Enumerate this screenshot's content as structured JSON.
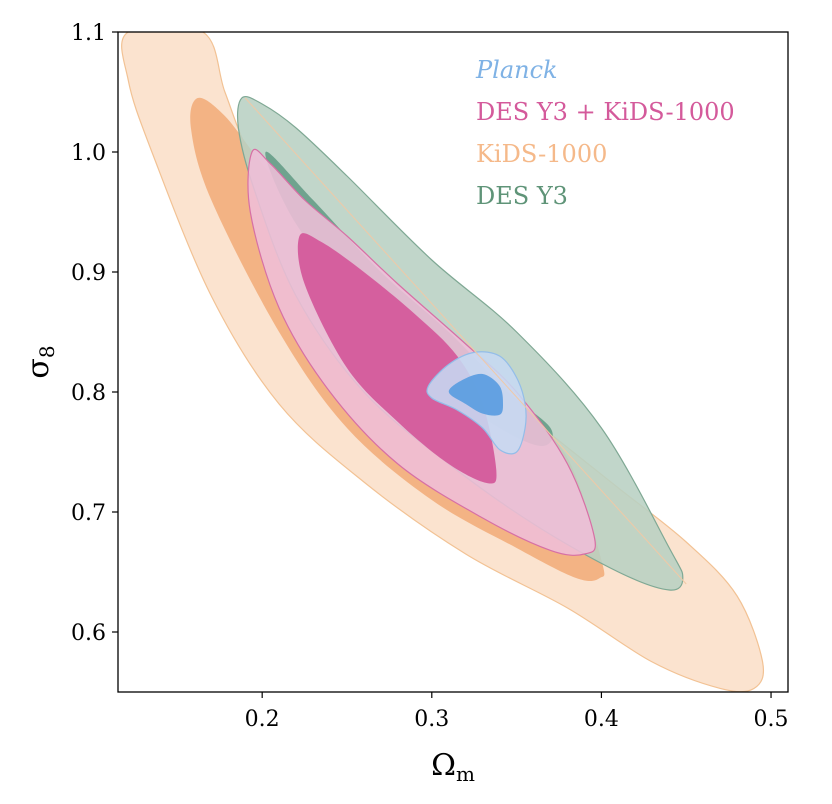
{
  "chart_data": {
    "type": "contour",
    "xlabel": "Ωm",
    "xlabel_main": "Ω",
    "xlabel_sub": "m",
    "ylabel": "σ8",
    "ylabel_main": "σ",
    "ylabel_sub": "8",
    "xlim": [
      0.115,
      0.51
    ],
    "ylim": [
      0.55,
      1.1
    ],
    "xticks": [
      0.2,
      0.3,
      0.4,
      0.5
    ],
    "xtick_labels": [
      "0.2",
      "0.3",
      "0.4",
      "0.5"
    ],
    "yticks": [
      0.6,
      0.7,
      0.8,
      0.9,
      1.0,
      1.1
    ],
    "ytick_labels": [
      "0.6",
      "0.7",
      "0.8",
      "0.9",
      "1.0",
      "1.1"
    ],
    "legend": [
      {
        "label": "Planck",
        "color": "#7fb2e5",
        "italic": true
      },
      {
        "label": "DES Y3 + KiDS-1000",
        "color": "#d45a9b",
        "italic": false
      },
      {
        "label": "KiDS-1000",
        "color": "#f5b98a",
        "italic": false
      },
      {
        "label": "DES Y3",
        "color": "#5f9478",
        "italic": false
      }
    ],
    "series": [
      {
        "name": "KiDS-1000",
        "fill_outer": "#fbdfc8",
        "fill_inner": "#f2b07f",
        "edge": "#f2c294",
        "contour_95": [
          [
            0.121,
            1.1
          ],
          [
            0.165,
            1.1
          ],
          [
            0.178,
            1.05
          ],
          [
            0.192,
            1.0
          ],
          [
            0.212,
            0.96
          ],
          [
            0.245,
            0.91
          ],
          [
            0.29,
            0.86
          ],
          [
            0.33,
            0.81
          ],
          [
            0.37,
            0.765
          ],
          [
            0.41,
            0.72
          ],
          [
            0.45,
            0.675
          ],
          [
            0.48,
            0.63
          ],
          [
            0.495,
            0.575
          ],
          [
            0.49,
            0.553
          ],
          [
            0.47,
            0.553
          ],
          [
            0.43,
            0.575
          ],
          [
            0.38,
            0.62
          ],
          [
            0.32,
            0.665
          ],
          [
            0.26,
            0.725
          ],
          [
            0.21,
            0.79
          ],
          [
            0.17,
            0.88
          ],
          [
            0.135,
            1.0
          ],
          [
            0.121,
            1.06
          ]
        ],
        "contour_68": [
          [
            0.162,
            1.045
          ],
          [
            0.178,
            1.03
          ],
          [
            0.2,
            0.99
          ],
          [
            0.23,
            0.94
          ],
          [
            0.27,
            0.89
          ],
          [
            0.31,
            0.84
          ],
          [
            0.35,
            0.79
          ],
          [
            0.38,
            0.745
          ],
          [
            0.4,
            0.66
          ],
          [
            0.399,
            0.645
          ],
          [
            0.385,
            0.645
          ],
          [
            0.35,
            0.67
          ],
          [
            0.3,
            0.71
          ],
          [
            0.25,
            0.77
          ],
          [
            0.21,
            0.85
          ],
          [
            0.17,
            0.96
          ],
          [
            0.158,
            1.02
          ]
        ]
      },
      {
        "name": "DES Y3",
        "fill_outer": "#b8d0c3",
        "fill_inner": "#6aa08a",
        "edge": "#7fa894",
        "contour_95": [
          [
            0.188,
            1.045
          ],
          [
            0.2,
            1.04
          ],
          [
            0.22,
            1.02
          ],
          [
            0.25,
            0.98
          ],
          [
            0.3,
            0.91
          ],
          [
            0.35,
            0.85
          ],
          [
            0.4,
            0.77
          ],
          [
            0.44,
            0.67
          ],
          [
            0.448,
            0.645
          ],
          [
            0.44,
            0.635
          ],
          [
            0.41,
            0.65
          ],
          [
            0.36,
            0.69
          ],
          [
            0.31,
            0.74
          ],
          [
            0.26,
            0.8
          ],
          [
            0.22,
            0.88
          ],
          [
            0.195,
            0.97
          ],
          [
            0.186,
            1.02
          ]
        ],
        "contour_68": [
          [
            0.202,
            1.0
          ],
          [
            0.23,
            0.96
          ],
          [
            0.27,
            0.9
          ],
          [
            0.31,
            0.85
          ],
          [
            0.345,
            0.8
          ],
          [
            0.37,
            0.77
          ],
          [
            0.365,
            0.755
          ],
          [
            0.34,
            0.77
          ],
          [
            0.3,
            0.81
          ],
          [
            0.26,
            0.87
          ],
          [
            0.22,
            0.94
          ]
        ]
      },
      {
        "name": "DES Y3 + KiDS-1000",
        "fill_outer": "#efbed8",
        "fill_inner": "#d45a9b",
        "edge": "#d76fa5",
        "contour_95": [
          [
            0.194,
            1.0
          ],
          [
            0.205,
            0.99
          ],
          [
            0.225,
            0.96
          ],
          [
            0.25,
            0.93
          ],
          [
            0.28,
            0.89
          ],
          [
            0.32,
            0.84
          ],
          [
            0.35,
            0.8
          ],
          [
            0.38,
            0.74
          ],
          [
            0.396,
            0.678
          ],
          [
            0.39,
            0.665
          ],
          [
            0.37,
            0.668
          ],
          [
            0.33,
            0.695
          ],
          [
            0.28,
            0.74
          ],
          [
            0.24,
            0.8
          ],
          [
            0.21,
            0.87
          ],
          [
            0.193,
            0.95
          ]
        ],
        "contour_68": [
          [
            0.222,
            0.93
          ],
          [
            0.235,
            0.925
          ],
          [
            0.26,
            0.9
          ],
          [
            0.29,
            0.865
          ],
          [
            0.315,
            0.83
          ],
          [
            0.33,
            0.79
          ],
          [
            0.338,
            0.735
          ],
          [
            0.333,
            0.724
          ],
          [
            0.31,
            0.74
          ],
          [
            0.28,
            0.775
          ],
          [
            0.25,
            0.82
          ],
          [
            0.225,
            0.89
          ]
        ]
      },
      {
        "name": "Planck",
        "fill_outer": "#c6daf2",
        "fill_inner": "#5e9ee0",
        "edge": "#93bde9",
        "contour_95": [
          [
            0.31,
            0.823
          ],
          [
            0.325,
            0.833
          ],
          [
            0.34,
            0.83
          ],
          [
            0.35,
            0.812
          ],
          [
            0.355,
            0.79
          ],
          [
            0.355,
            0.77
          ],
          [
            0.35,
            0.75
          ],
          [
            0.34,
            0.752
          ],
          [
            0.33,
            0.77
          ],
          [
            0.315,
            0.785
          ],
          [
            0.3,
            0.795
          ],
          [
            0.298,
            0.805
          ]
        ],
        "contour_68": [
          [
            0.318,
            0.81
          ],
          [
            0.33,
            0.815
          ],
          [
            0.34,
            0.805
          ],
          [
            0.342,
            0.79
          ],
          [
            0.34,
            0.781
          ],
          [
            0.33,
            0.782
          ],
          [
            0.32,
            0.79
          ],
          [
            0.31,
            0.8
          ]
        ]
      }
    ],
    "diagonal_line": {
      "from": [
        0.19,
        1.045
      ],
      "to": [
        0.45,
        0.64
      ],
      "color": "#f0c9a6"
    }
  }
}
